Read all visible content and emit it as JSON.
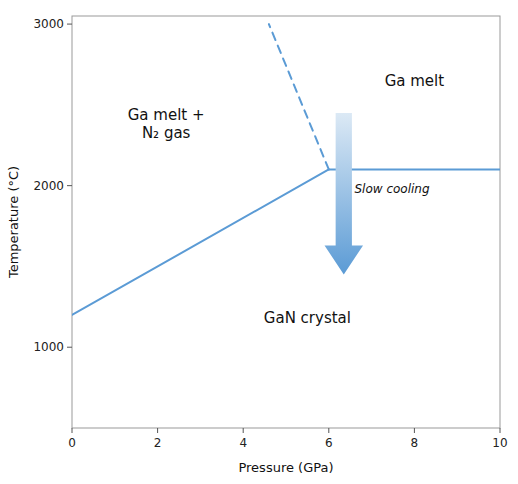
{
  "chart_data": {
    "type": "line",
    "xlabel": "Pressure (GPa)",
    "ylabel": "Temperature (°C)",
    "xlim": [
      0,
      10
    ],
    "ylim": [
      500,
      3050
    ],
    "xticks": [
      0,
      2,
      4,
      6,
      8,
      10
    ],
    "yticks": [
      1000,
      2000,
      3000
    ],
    "color": "#5b9bd5",
    "series": [
      {
        "x": [
          0,
          6.0
        ],
        "values": [
          1200,
          2100
        ],
        "line_style": "solid"
      },
      {
        "x": [
          6.0,
          4.6
        ],
        "values": [
          2100,
          3000
        ],
        "line_style": "dashed"
      },
      {
        "x": [
          6.0,
          10
        ],
        "values": [
          2100,
          2100
        ],
        "line_style": "solid"
      }
    ],
    "annotations": [
      {
        "text": "Ga melt +\nN₂ gas",
        "x": 2.2,
        "y": 2380
      },
      {
        "text": "Ga melt",
        "x": 8.0,
        "y": 2650
      },
      {
        "text": "GaN crystal",
        "x": 5.5,
        "y": 1180
      },
      {
        "type": "arrow",
        "x": 6.35,
        "y_start": 2450,
        "y_end": 1450,
        "text": "Slow cooling",
        "text_x": 6.6,
        "text_y": 1980
      }
    ]
  }
}
